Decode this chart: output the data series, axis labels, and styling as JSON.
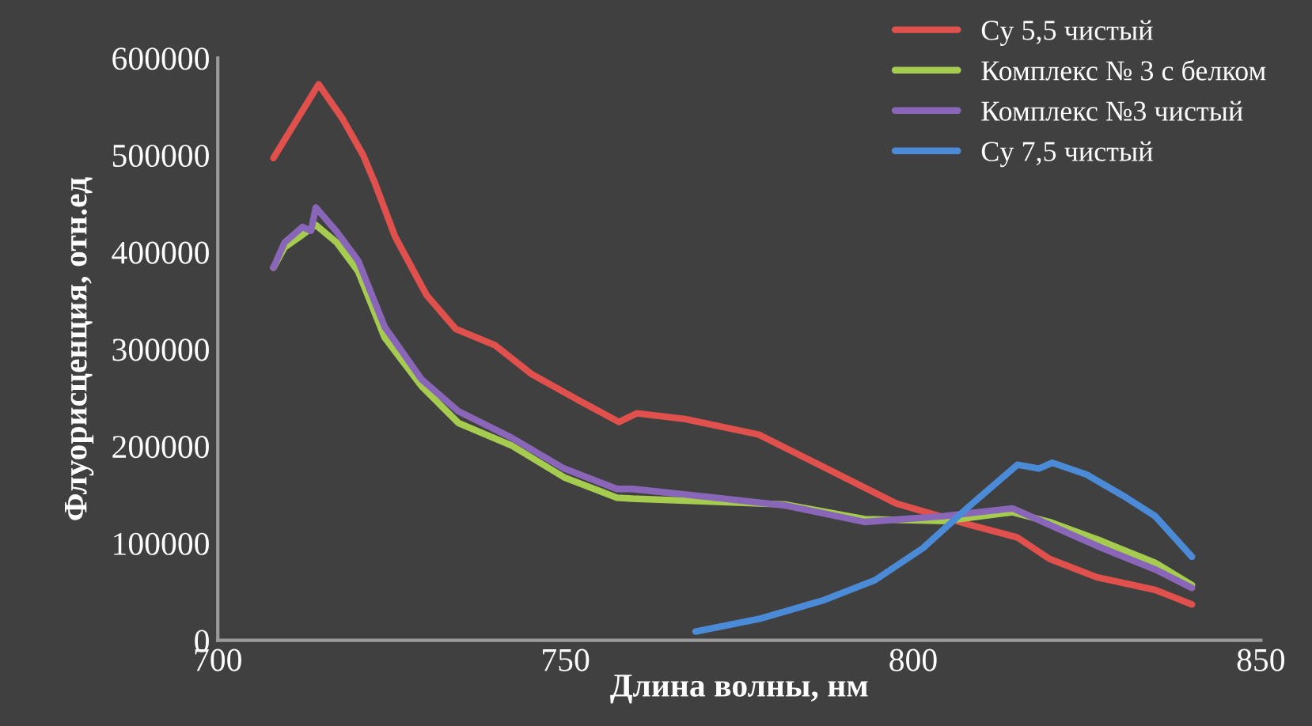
{
  "chart_data": {
    "type": "line",
    "xlabel": "Длина волны, нм",
    "ylabel": "Флуорисценция, отн.ед",
    "xlim": [
      700,
      850
    ],
    "xticks": [
      700,
      750,
      800,
      850
    ],
    "ylim": [
      0,
      600000
    ],
    "yticks": [
      0,
      100000,
      200000,
      300000,
      400000,
      500000,
      600000
    ],
    "grid": false,
    "legend": "top right",
    "marker": "none",
    "line_style": "solid",
    "series": [
      {
        "name": "Cy 5,5 чистый",
        "color": "#e0504c",
        "x": [
          708,
          714.5,
          717.9,
          720.9,
          722.5,
          725.5,
          730.0,
          734.2,
          739.9,
          745.2,
          752.0,
          757.7,
          760.3,
          767.2,
          777.8,
          787.0,
          797.6,
          808.2,
          815.0,
          819.6,
          826.4,
          834.8,
          840.1
        ],
        "values": [
          497000,
          573000,
          538000,
          500000,
          473000,
          416000,
          356000,
          321000,
          304000,
          274000,
          247000,
          225000,
          234000,
          228000,
          212000,
          179000,
          141000,
          119000,
          106000,
          84000,
          65000,
          52000,
          37000
        ]
      },
      {
        "name": "Комплекс № 3 с белком",
        "color": "#a5cc4e",
        "x": [
          708,
          709.6,
          712.2,
          714.1,
          717.1,
          720.2,
          724.0,
          729.3,
          734.6,
          742.2,
          749.8,
          757.4,
          759.6,
          770.3,
          781.6,
          793.0,
          804.4,
          814.3,
          819.6,
          827.2,
          834.8,
          840.1
        ],
        "values": [
          384000,
          405000,
          418000,
          428000,
          410000,
          380000,
          312000,
          262000,
          224000,
          201000,
          168000,
          147000,
          146000,
          143000,
          140000,
          125000,
          123000,
          132000,
          122000,
          102000,
          80000,
          57000
        ]
      },
      {
        "name": "Комплекс №3 чистый",
        "color": "#8a66b8",
        "x": [
          708,
          709.6,
          712.2,
          713.4,
          714.1,
          717.1,
          720.2,
          724.0,
          729.3,
          734.6,
          742.2,
          749.8,
          757.4,
          759.6,
          770.3,
          781.6,
          793.0,
          804.4,
          814.3,
          819.6,
          827.2,
          834.8,
          840.1
        ],
        "values": [
          384000,
          410000,
          426000,
          422000,
          446000,
          421000,
          391000,
          323000,
          269000,
          236000,
          209000,
          177000,
          156000,
          156000,
          148000,
          139000,
          122000,
          128000,
          136000,
          119000,
          95000,
          73000,
          54000
        ]
      },
      {
        "name": "Cy 7,5 чистый",
        "color": "#4a8ad6",
        "x": [
          768.7,
          777.8,
          787.0,
          794.5,
          801.4,
          808.2,
          815.0,
          818.1,
          820.0,
          824.9,
          830.2,
          834.8,
          840.1
        ],
        "values": [
          9000,
          22000,
          41000,
          62000,
          95000,
          139000,
          181000,
          177000,
          183000,
          171000,
          149000,
          128000,
          86000
        ]
      }
    ]
  }
}
